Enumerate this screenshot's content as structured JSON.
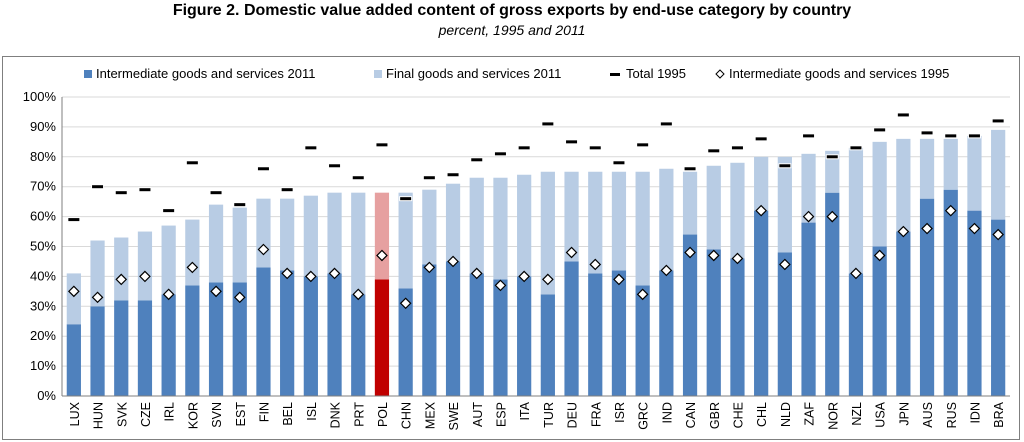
{
  "title": "Figure 2. Domestic value added content of gross exports by end-use category by country",
  "subtitle": "percent, 1995 and 2011",
  "colors": {
    "intermediate": "#4f81bd",
    "final": "#b8cce4",
    "highlight_intermediate": "#c00000",
    "highlight_final": "#e6a0a0",
    "total_marker": "#000000",
    "diamond": "#ffffff",
    "frame": "#7f7f7f"
  },
  "chart_data": {
    "type": "bar",
    "stacked": true,
    "title": "Figure 2. Domestic value added content of gross exports by end-use category by country",
    "subtitle": "percent, 1995 and 2011",
    "xlabel": "",
    "ylabel": "",
    "ylim": [
      0,
      100
    ],
    "y_ticks": [
      "0%",
      "10%",
      "20%",
      "30%",
      "40%",
      "50%",
      "60%",
      "70%",
      "80%",
      "90%",
      "100%"
    ],
    "legend_position": "top",
    "highlight_category": "POL",
    "categories": [
      "LUX",
      "HUN",
      "SVK",
      "CZE",
      "IRL",
      "KOR",
      "SVN",
      "EST",
      "FIN",
      "BEL",
      "ISL",
      "DNK",
      "PRT",
      "POL",
      "CHN",
      "MEX",
      "SWE",
      "AUT",
      "ESP",
      "ITA",
      "TUR",
      "DEU",
      "FRA",
      "ISR",
      "GRC",
      "IND",
      "CAN",
      "GBR",
      "CHE",
      "CHL",
      "NLD",
      "ZAF",
      "NOR",
      "NZL",
      "USA",
      "JPN",
      "AUS",
      "RUS",
      "IDN",
      "BRA"
    ],
    "series": [
      {
        "name": "Intermediate goods and services 2011",
        "kind": "bar-bottom",
        "values": [
          24,
          30,
          32,
          32,
          34,
          37,
          38,
          38,
          43,
          42,
          40,
          41,
          34,
          39,
          36,
          44,
          45,
          41,
          39,
          40,
          34,
          45,
          41,
          42,
          37,
          42,
          54,
          49,
          46,
          62,
          48,
          58,
          68,
          41,
          50,
          55,
          66,
          69,
          62,
          59
        ]
      },
      {
        "name": "Final goods and services 2011",
        "kind": "bar-stack",
        "values": [
          17,
          22,
          21,
          23,
          23,
          22,
          26,
          25,
          23,
          24,
          27,
          27,
          34,
          29,
          32,
          25,
          26,
          32,
          34,
          34,
          41,
          30,
          34,
          33,
          38,
          34,
          21,
          28,
          32,
          18,
          32,
          23,
          14,
          42,
          35,
          31,
          20,
          17,
          25,
          30
        ]
      },
      {
        "name": "Total  1995",
        "kind": "dash-marker",
        "values": [
          59,
          70,
          68,
          69,
          62,
          78,
          68,
          64,
          76,
          69,
          83,
          77,
          73,
          84,
          66,
          73,
          74,
          79,
          81,
          83,
          91,
          85,
          83,
          78,
          84,
          91,
          76,
          82,
          83,
          86,
          77,
          87,
          80,
          83,
          89,
          94,
          88,
          87,
          87,
          92
        ]
      },
      {
        "name": "Intermediate goods and services 1995",
        "kind": "diamond-marker",
        "values": [
          35,
          33,
          39,
          40,
          34,
          43,
          35,
          33,
          49,
          41,
          40,
          41,
          34,
          47,
          31,
          43,
          45,
          41,
          37,
          40,
          39,
          48,
          44,
          39,
          34,
          42,
          48,
          47,
          46,
          62,
          44,
          60,
          60,
          41,
          47,
          55,
          56,
          62,
          56,
          54
        ]
      }
    ]
  }
}
